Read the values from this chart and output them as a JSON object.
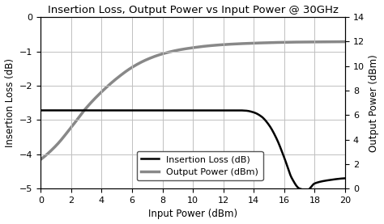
{
  "title": "Insertion Loss, Output Power vs Input Power @ 30GHz",
  "xlabel": "Input Power (dBm)",
  "ylabel_left": "Insertion Loss (dB)",
  "ylabel_right": "Output Power (dBm)",
  "left_ylim": [
    -5,
    0
  ],
  "right_ylim": [
    0,
    14
  ],
  "left_yticks": [
    0,
    -1,
    -2,
    -3,
    -4,
    -5
  ],
  "right_yticks": [
    0,
    2,
    4,
    6,
    8,
    10,
    12,
    14
  ],
  "xlim": [
    0,
    20
  ],
  "xticks": [
    0,
    2,
    4,
    6,
    8,
    10,
    12,
    14,
    16,
    18,
    20
  ],
  "insertion_loss_color": "#000000",
  "output_power_color": "#888888",
  "insertion_loss_lw": 1.8,
  "output_power_lw": 2.5,
  "background_color": "#ffffff",
  "grid_color": "#c0c0c0",
  "title_fontsize": 9.5,
  "axis_label_fontsize": 8.5,
  "tick_fontsize": 8,
  "legend_fontsize": 8,
  "figsize": [
    4.74,
    2.77
  ],
  "dpi": 100,
  "il_x": [
    0,
    0.5,
    1,
    2,
    3,
    4,
    5,
    6,
    7,
    8,
    9,
    10,
    11,
    12,
    13,
    13.5,
    14,
    14.5,
    15,
    15.5,
    16,
    16.5,
    17,
    17.5,
    18,
    19,
    20
  ],
  "il_y": [
    -2.72,
    -2.72,
    -2.72,
    -2.72,
    -2.72,
    -2.72,
    -2.72,
    -2.72,
    -2.72,
    -2.72,
    -2.72,
    -2.72,
    -2.72,
    -2.72,
    -2.72,
    -2.73,
    -2.78,
    -2.9,
    -3.15,
    -3.55,
    -4.1,
    -4.7,
    -5.0,
    -5.05,
    -4.85,
    -4.75,
    -4.7
  ],
  "op_x": [
    0,
    1,
    2,
    3,
    4,
    5,
    6,
    7,
    8,
    9,
    10,
    11,
    12,
    13,
    14,
    15,
    16,
    17,
    18,
    19,
    20
  ],
  "op_y": [
    2.38,
    3.5,
    5.0,
    6.6,
    7.9,
    9.0,
    9.9,
    10.55,
    11.0,
    11.3,
    11.5,
    11.65,
    11.75,
    11.82,
    11.87,
    11.91,
    11.94,
    11.96,
    11.97,
    11.98,
    11.99
  ]
}
